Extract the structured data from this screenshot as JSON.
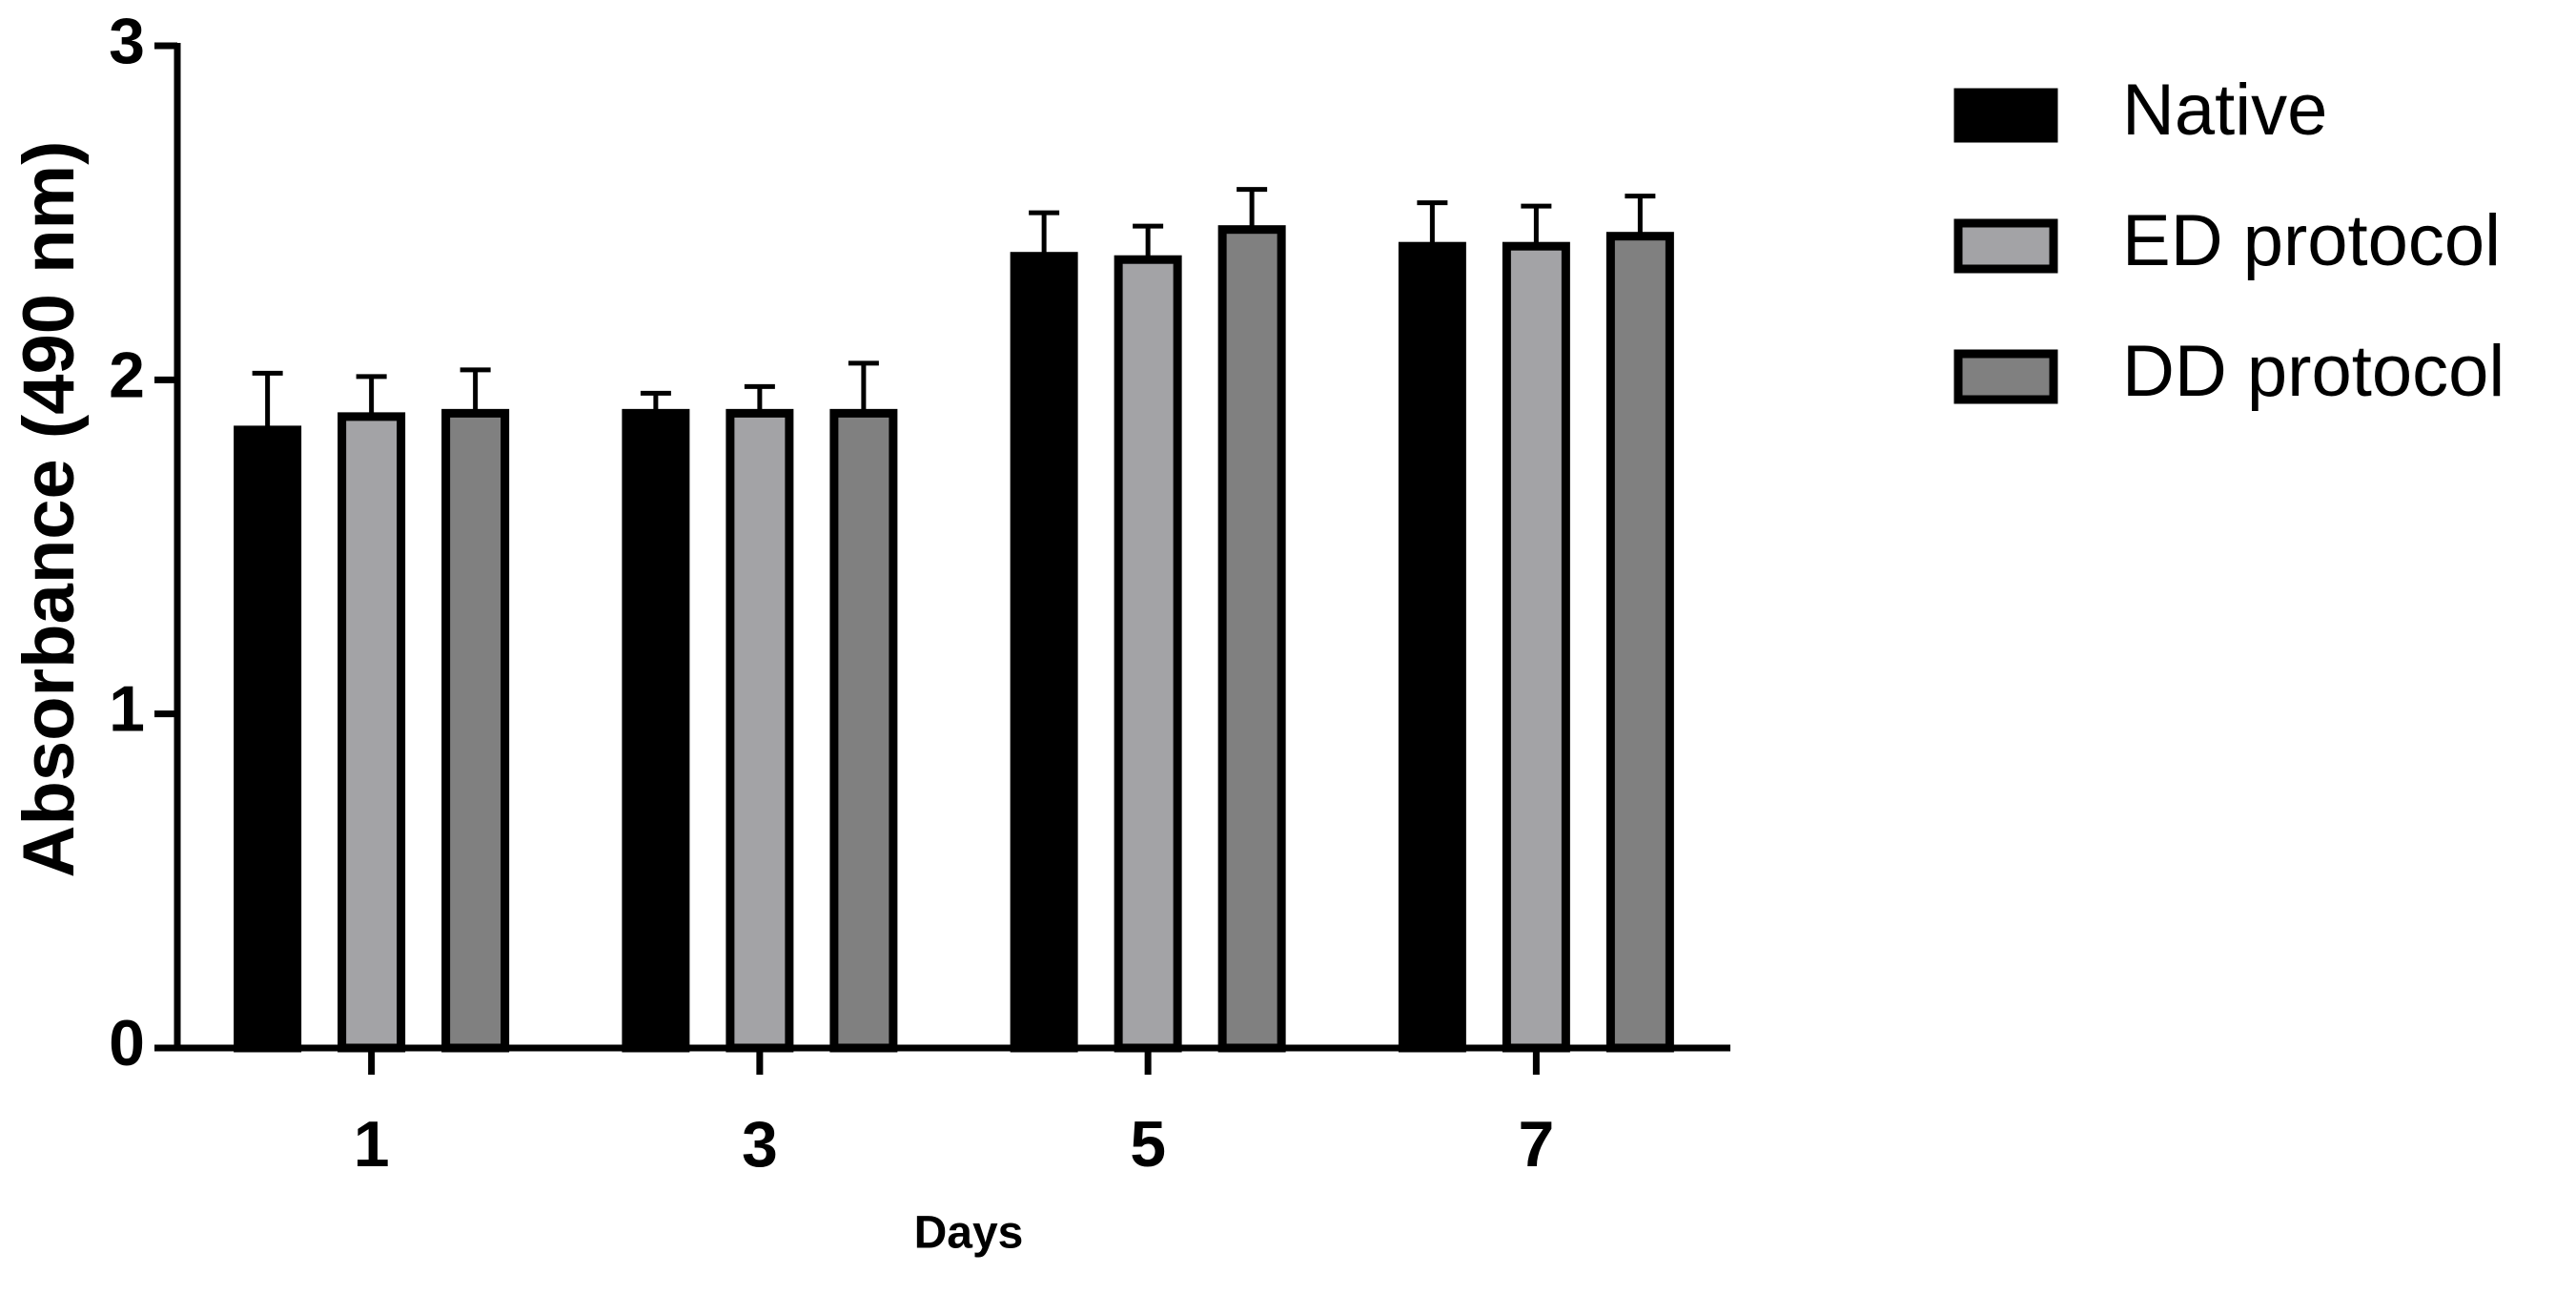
{
  "chart_data": {
    "type": "bar",
    "x_label": "Days",
    "y_label": "Absorbance (490 nm)",
    "categories": [
      "1",
      "3",
      "5",
      "7"
    ],
    "series": [
      {
        "name": "Native",
        "color": "#000000",
        "values": [
          1.85,
          1.9,
          2.37,
          2.4
        ],
        "errors": [
          0.17,
          0.06,
          0.13,
          0.13
        ]
      },
      {
        "name": "ED protocol",
        "color": "#a3a3a6",
        "values": [
          1.89,
          1.9,
          2.36,
          2.4
        ],
        "errors": [
          0.12,
          0.08,
          0.1,
          0.12
        ]
      },
      {
        "name": "DD protocol",
        "color": "#808080",
        "values": [
          1.9,
          1.9,
          2.45,
          2.43
        ],
        "errors": [
          0.13,
          0.15,
          0.12,
          0.12
        ]
      }
    ],
    "ylim": [
      0,
      3
    ],
    "yticks": [
      0,
      1,
      2,
      3
    ],
    "grid": false,
    "legend": "right"
  }
}
